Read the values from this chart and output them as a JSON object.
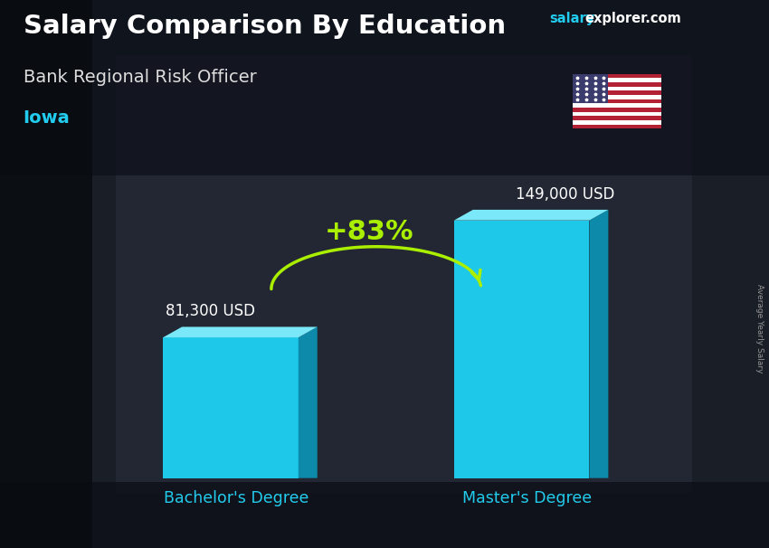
{
  "title": "Salary Comparison By Education",
  "subtitle": "Bank Regional Risk Officer",
  "location": "Iowa",
  "watermark_salary": "salary",
  "watermark_rest": "explorer.com",
  "side_label": "Average Yearly Salary",
  "categories": [
    "Bachelor's Degree",
    "Master's Degree"
  ],
  "values": [
    81300,
    149000
  ],
  "value_labels": [
    "81,300 USD",
    "149,000 USD"
  ],
  "bar_face_color": "#1EC8E8",
  "bar_top_color": "#7AE8F8",
  "bar_side_color": "#0D8AAA",
  "pct_change": "+83%",
  "pct_color": "#AAEE00",
  "arrow_color": "#AAEE00",
  "bg_dark": "#111418",
  "bg_mid": "#2a3040",
  "title_color": "#FFFFFF",
  "subtitle_color": "#DDDDDD",
  "location_color": "#22CCEE",
  "value_label_color": "#FFFFFF",
  "xticklabel_color": "#22CCEE",
  "watermark_salary_color": "#22CCEE",
  "watermark_rest_color": "#FFFFFF",
  "ylim_max": 175000,
  "figsize": [
    8.5,
    6.06
  ],
  "dpi": 100
}
